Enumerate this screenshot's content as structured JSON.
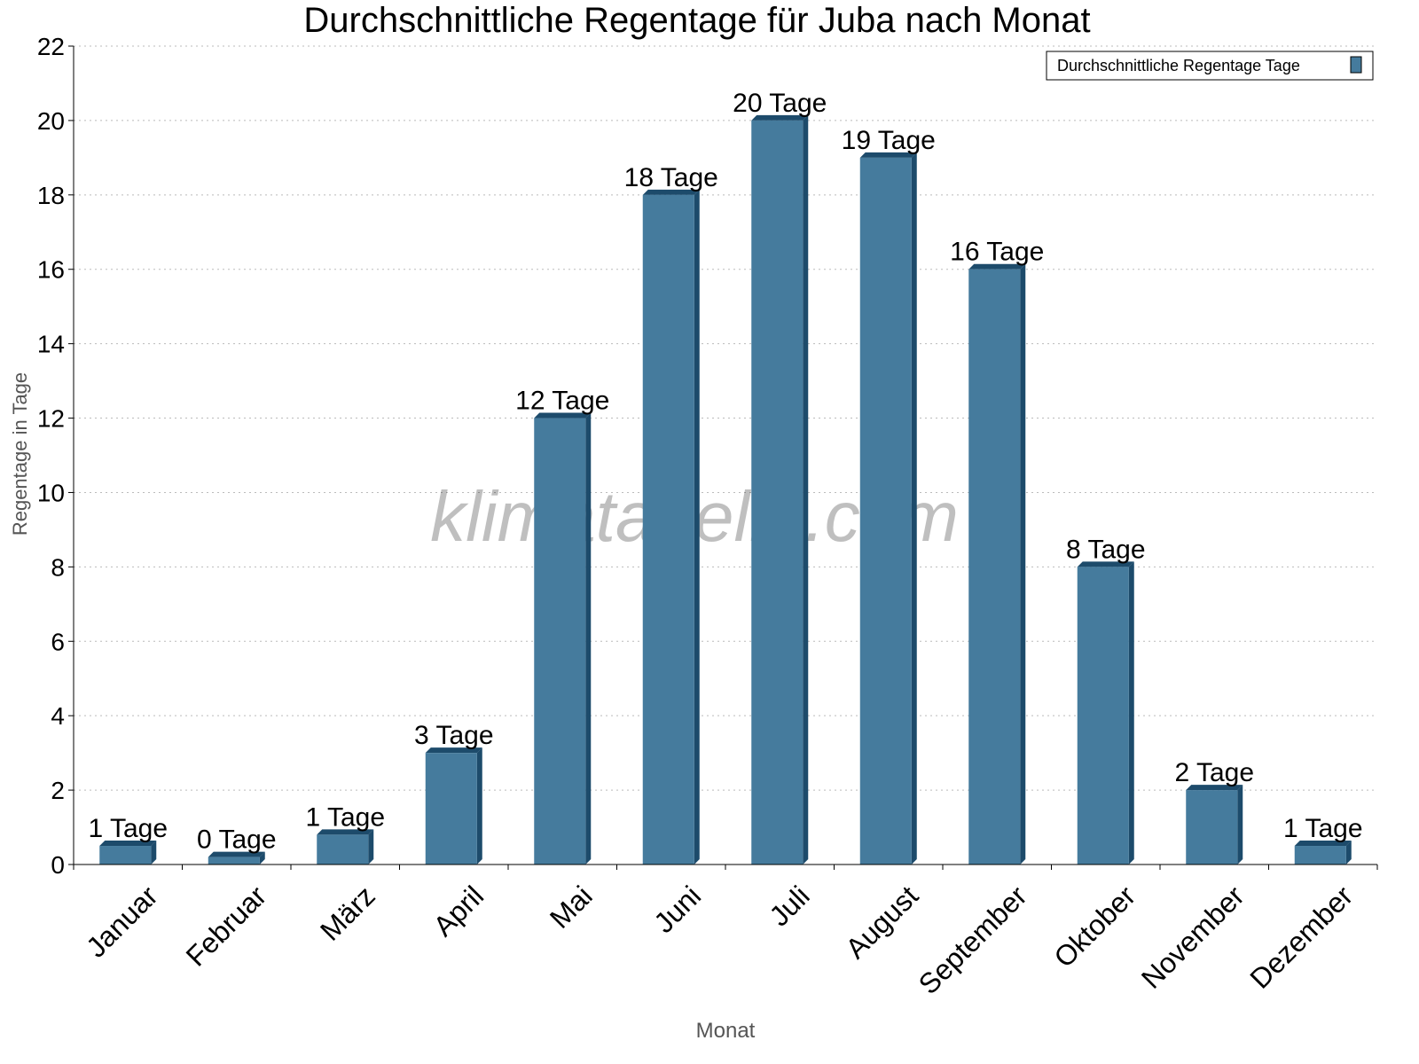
{
  "chart_data": {
    "type": "bar",
    "title": "Durchschnittliche Regentage für Juba nach Monat",
    "xlabel": "Monat",
    "ylabel": "Regentage in Tage",
    "ylim": [
      0,
      22
    ],
    "yticks": [
      0,
      2,
      4,
      6,
      8,
      10,
      12,
      14,
      16,
      18,
      20,
      22
    ],
    "grid": true,
    "legend_placement": "top-right",
    "categories": [
      "Januar",
      "Februar",
      "März",
      "April",
      "Mai",
      "Juni",
      "Juli",
      "August",
      "September",
      "Oktober",
      "November",
      "Dezember"
    ],
    "series": [
      {
        "name": "Durchschnittliche Regentage Tage",
        "color": "#457b9d",
        "side_color": "#1d4b6b",
        "values": [
          0.5,
          0.2,
          0.8,
          3,
          12,
          18,
          20,
          19,
          16,
          8,
          2,
          0.5
        ],
        "data_labels": [
          "1 Tage",
          "0 Tage",
          "1 Tage",
          "3 Tage",
          "12 Tage",
          "18 Tage",
          "20 Tage",
          "19 Tage",
          "16 Tage",
          "8 Tage",
          "2 Tage",
          "1 Tage"
        ]
      }
    ],
    "watermark": "klimatabelle.com"
  }
}
